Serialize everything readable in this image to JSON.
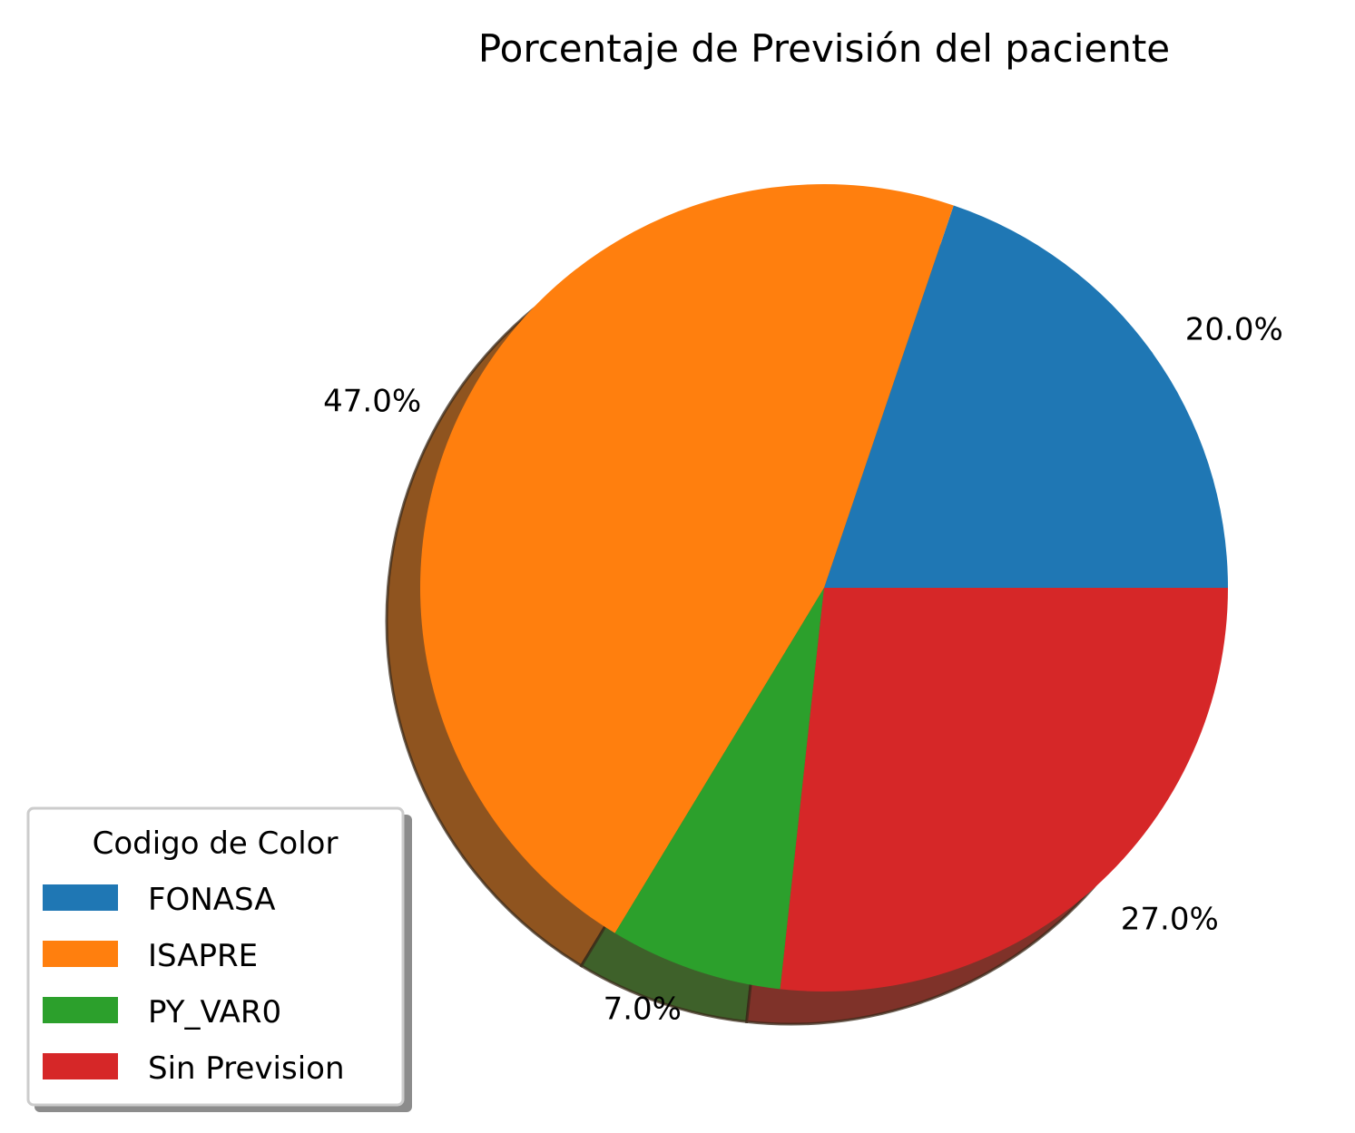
{
  "chart_data": {
    "type": "pie",
    "title": "Porcentaje de Previsión del paciente",
    "categories": [
      "FONASA",
      "ISAPRE",
      "PY_VAR0",
      "Sin Prevision"
    ],
    "values": [
      20.0,
      47.0,
      7.0,
      27.0
    ],
    "value_labels": [
      "20.0%",
      "47.0%",
      "7.0%",
      "27.0%"
    ],
    "colors": [
      "#1f77b4",
      "#ff7f0e",
      "#2ca02c",
      "#d62728"
    ],
    "start_angle_deg": 0,
    "direction": "counterclockwise",
    "shadow": true,
    "legend": {
      "title": "Codigo de Color",
      "placement": "lower-left"
    }
  }
}
